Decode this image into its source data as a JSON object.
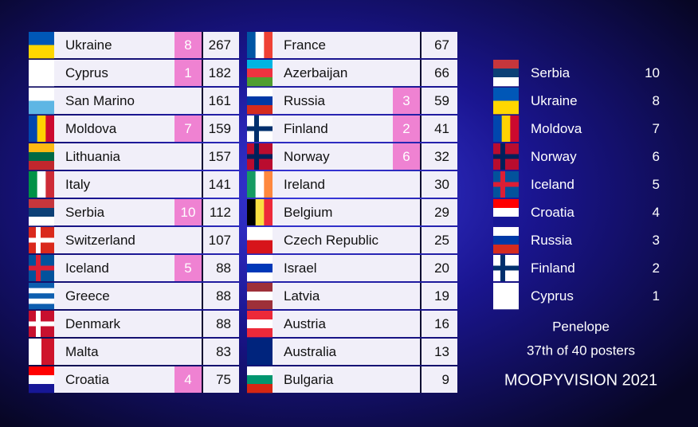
{
  "scoreboard": {
    "column1": [
      {
        "country": "Ukraine",
        "points": 8,
        "total": 267
      },
      {
        "country": "Cyprus",
        "points": 1,
        "total": 182
      },
      {
        "country": "San Marino",
        "total": 161
      },
      {
        "country": "Moldova",
        "points": 7,
        "total": 159
      },
      {
        "country": "Lithuania",
        "total": 157
      },
      {
        "country": "Italy",
        "total": 141
      },
      {
        "country": "Serbia",
        "points": 10,
        "total": 112
      },
      {
        "country": "Switzerland",
        "total": 107
      },
      {
        "country": "Iceland",
        "points": 5,
        "total": 88
      },
      {
        "country": "Greece",
        "total": 88
      },
      {
        "country": "Denmark",
        "total": 88
      },
      {
        "country": "Malta",
        "total": 83
      },
      {
        "country": "Croatia",
        "points": 4,
        "total": 75
      }
    ],
    "column2": [
      {
        "country": "France",
        "total": 67
      },
      {
        "country": "Azerbaijan",
        "total": 66
      },
      {
        "country": "Russia",
        "points": 3,
        "total": 59
      },
      {
        "country": "Finland",
        "points": 2,
        "total": 41
      },
      {
        "country": "Norway",
        "points": 6,
        "total": 32
      },
      {
        "country": "Ireland",
        "total": 30
      },
      {
        "country": "Belgium",
        "total": 29
      },
      {
        "country": "Czech Republic",
        "total": 25
      },
      {
        "country": "Israel",
        "total": 20
      },
      {
        "country": "Latvia",
        "total": 19
      },
      {
        "country": "Austria",
        "total": 16
      },
      {
        "country": "Australia",
        "total": 13
      },
      {
        "country": "Bulgaria",
        "total": 9
      }
    ]
  },
  "votes": [
    {
      "country": "Serbia",
      "points": 10
    },
    {
      "country": "Ukraine",
      "points": 8
    },
    {
      "country": "Moldova",
      "points": 7
    },
    {
      "country": "Norway",
      "points": 6
    },
    {
      "country": "Iceland",
      "points": 5
    },
    {
      "country": "Croatia",
      "points": 4
    },
    {
      "country": "Russia",
      "points": 3
    },
    {
      "country": "Finland",
      "points": 2
    },
    {
      "country": "Cyprus",
      "points": 1
    }
  ],
  "footer": {
    "voter": "Penelope",
    "rank": "37th of 40 posters",
    "brand": "MOOPYVISION 2021"
  }
}
